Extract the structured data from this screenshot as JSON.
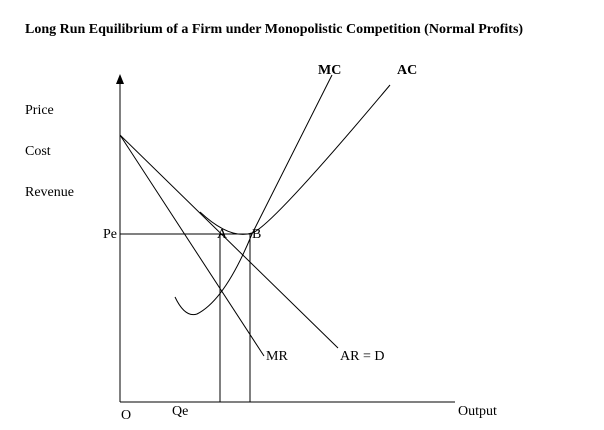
{
  "title": "Long Run Equilibrium of a Firm under Monopolistic  Competition (Normal Profits)",
  "y_axis_labels": [
    "Price",
    "Cost",
    "Revenue"
  ],
  "x_axis_label": "Output",
  "origin": "O",
  "price_label": "Pe",
  "quantity_label": "Qe",
  "curves": {
    "mc": "MC",
    "ac": "AC",
    "mr": "MR",
    "ar": "AR = D"
  },
  "points": {
    "a": "A",
    "b": "B"
  }
}
